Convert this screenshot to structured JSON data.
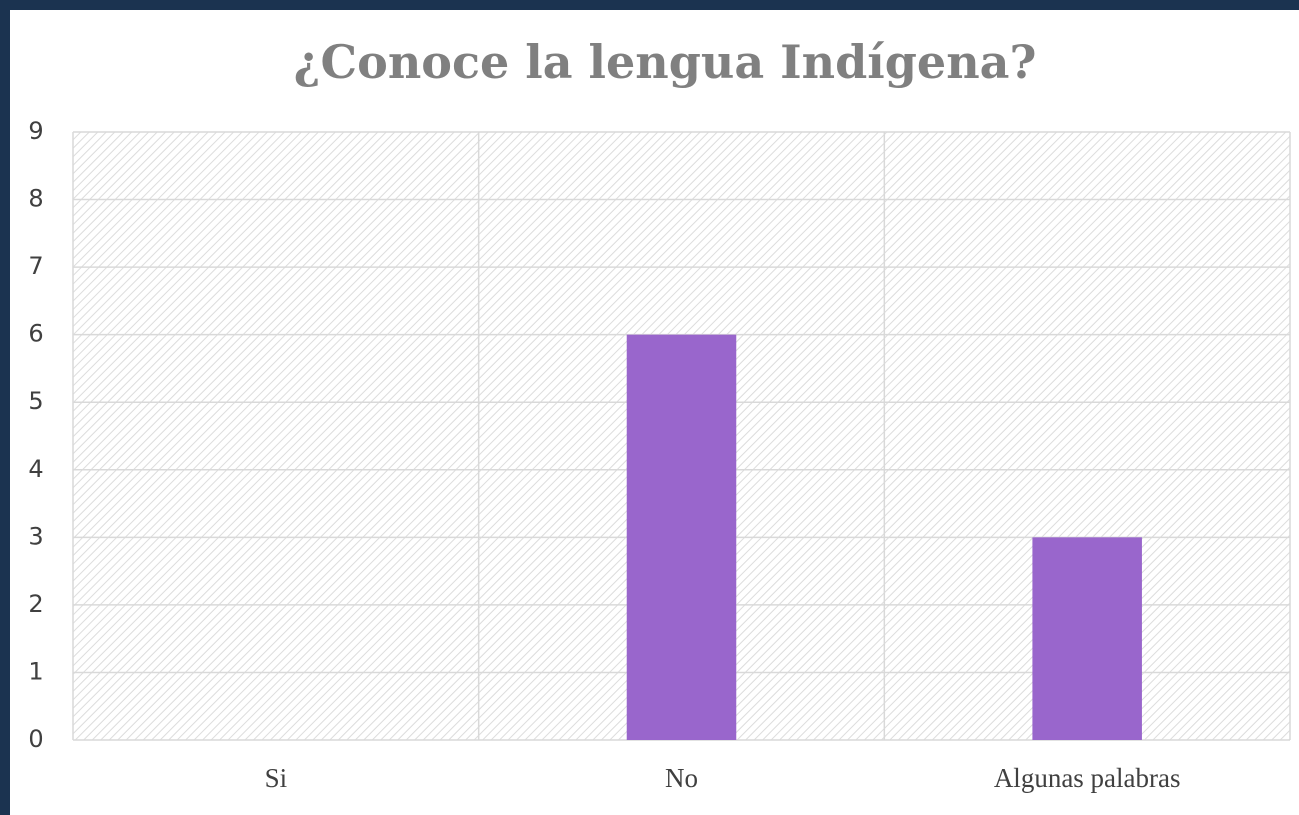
{
  "chart_data": {
    "type": "bar",
    "title": "¿Conoce la lengua Indígena?",
    "categories": [
      "Si",
      "No",
      "Algunas palabras"
    ],
    "values": [
      0,
      6,
      3
    ],
    "color": "#9966cc",
    "ylim": [
      0,
      9
    ],
    "yticks": [
      0,
      1,
      2,
      3,
      4,
      5,
      6,
      7,
      8,
      9
    ],
    "grid": true
  }
}
